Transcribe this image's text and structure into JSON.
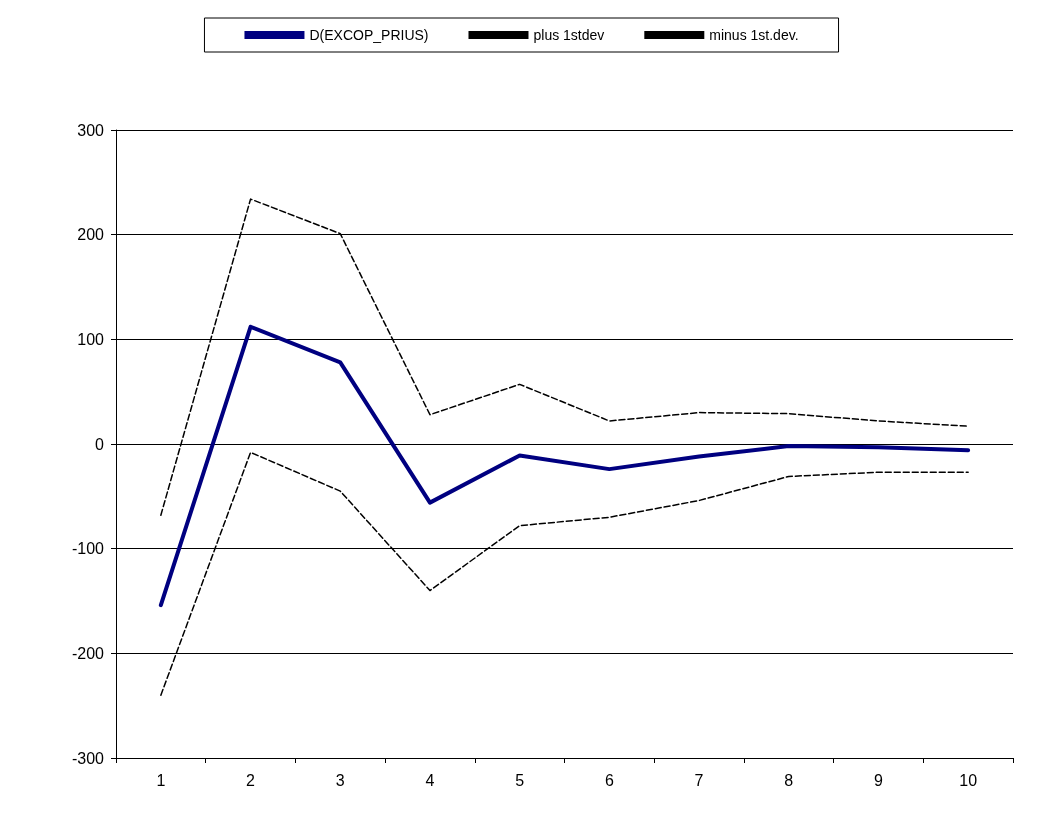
{
  "chart_data": {
    "type": "line",
    "categories": [
      "1",
      "2",
      "3",
      "4",
      "5",
      "6",
      "7",
      "8",
      "9",
      "10"
    ],
    "series": [
      {
        "name": "D(EXCOP_PRIUS)",
        "color": "#000080",
        "line_style": "solid",
        "values": [
          -154,
          112,
          78,
          -56,
          -11,
          -24,
          -12,
          -2,
          -3,
          -6
        ]
      },
      {
        "name": "plus 1stdev",
        "color": "#000000",
        "line_style": "dashed",
        "values": [
          -68,
          234,
          201,
          28,
          57,
          22,
          30,
          29,
          22,
          17
        ]
      },
      {
        "name": "minus 1st.dev.",
        "color": "#000000",
        "line_style": "dashed",
        "values": [
          -240,
          -8,
          -45,
          -140,
          -78,
          -70,
          -54,
          -31,
          -27,
          -27
        ]
      }
    ],
    "ylim": [
      -300,
      300
    ],
    "yticks": [
      -300,
      -200,
      -100,
      0,
      100,
      200,
      300
    ],
    "grid": "y",
    "legend": "top",
    "marker": "none"
  }
}
